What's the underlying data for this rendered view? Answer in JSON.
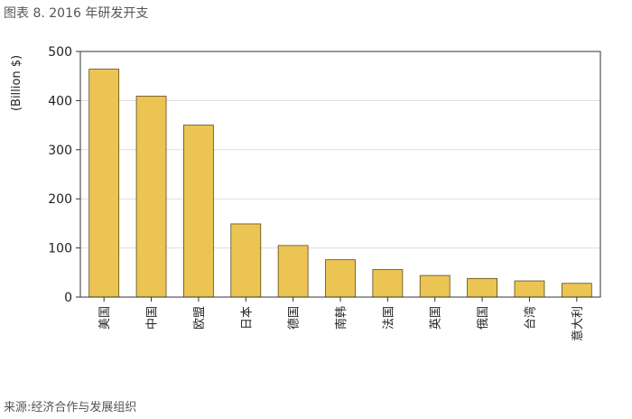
{
  "figure": {
    "title": "图表 8. 2016 年研发开支",
    "source": "来源:经济合作与发展组织"
  },
  "chart_data": {
    "type": "bar",
    "title": "",
    "ylabel": "(Billion $)",
    "xlabel": "",
    "ylim": [
      0,
      500
    ],
    "yticks": [
      0,
      100,
      200,
      300,
      400,
      500
    ],
    "grid": true,
    "categories": [
      "美国",
      "中国",
      "欧盟",
      "日本",
      "德国",
      "南韩",
      "法国",
      "英国",
      "俄国",
      "台湾",
      "意大利"
    ],
    "values": [
      464,
      409,
      350,
      149,
      105,
      76,
      56,
      44,
      38,
      33,
      28
    ],
    "bar_color": "#ECC453",
    "bar_edge_color": "#5a4a1a"
  }
}
